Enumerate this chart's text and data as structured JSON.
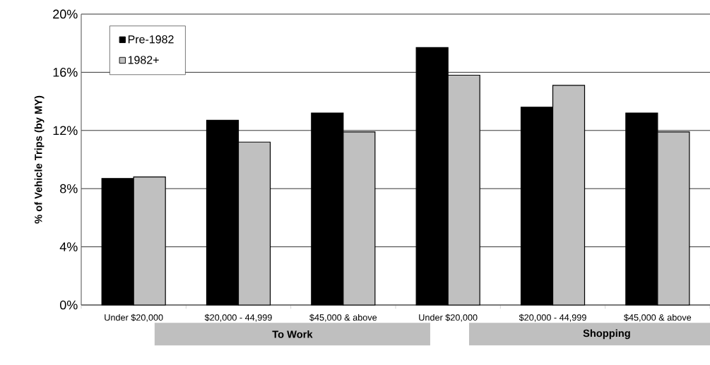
{
  "chart_data": {
    "type": "bar",
    "ylabel": "% of Vehicle Trips (by MY)",
    "categories": [
      "Under $20,000",
      "$20,000 - 44,999",
      "$45,000 & above",
      "Under $20,000",
      "$20,000 - 44,999",
      "$45,000 & above"
    ],
    "series": [
      {
        "name": "Pre-1982",
        "color": "#000000",
        "values": [
          8.7,
          12.7,
          13.2,
          17.7,
          13.6,
          13.2
        ]
      },
      {
        "name": "1982+",
        "color": "#c0c0c0",
        "values": [
          8.8,
          11.2,
          11.9,
          15.8,
          15.1,
          11.9
        ]
      }
    ],
    "ylim": [
      0,
      20
    ],
    "yticks": [
      {
        "value": 0,
        "label": "0%"
      },
      {
        "value": 4,
        "label": "4%"
      },
      {
        "value": 8,
        "label": "8%"
      },
      {
        "value": 12,
        "label": "12%"
      },
      {
        "value": 16,
        "label": "16%"
      },
      {
        "value": 20,
        "label": "20%"
      }
    ],
    "grid": "y",
    "legend": "top left",
    "annotations": [
      "To Work",
      "Shopping"
    ]
  }
}
